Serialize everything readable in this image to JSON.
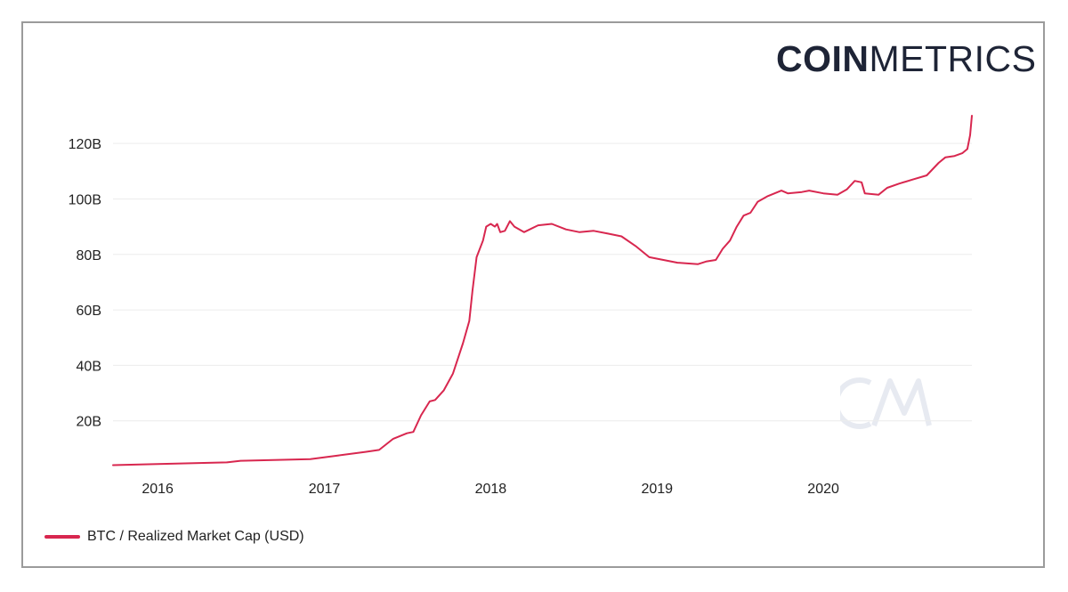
{
  "logo": {
    "bold": "COIN",
    "light": "METRICS"
  },
  "watermark_text": "CM",
  "colors": {
    "series": "#d8274f",
    "grid": "#ececec",
    "frame": "#9b9b9b",
    "logo": "#1e2436",
    "watermark": "#e7eaf1"
  },
  "chart_data": {
    "type": "line",
    "title": "",
    "xlabel": "",
    "ylabel": "",
    "x_ticks": [
      "2016",
      "2017",
      "2018",
      "2019",
      "2020"
    ],
    "y_ticks": [
      "20B",
      "40B",
      "60B",
      "80B",
      "100B",
      "120B"
    ],
    "y_tick_values": [
      20,
      40,
      60,
      80,
      100,
      120
    ],
    "xlim": [
      "2015-09-25",
      "2020-11-22"
    ],
    "ylim": [
      0,
      130
    ],
    "grid": true,
    "legend_position": "bottom-left",
    "series": [
      {
        "name": "BTC / Realized Market Cap (USD)",
        "unit": "B USD",
        "points": [
          [
            "2015-09-25",
            4.0
          ],
          [
            "2016-01-01",
            4.4
          ],
          [
            "2016-06-01",
            5.0
          ],
          [
            "2016-07-01",
            5.6
          ],
          [
            "2016-12-01",
            6.2
          ],
          [
            "2017-02-01",
            7.5
          ],
          [
            "2017-04-01",
            8.8
          ],
          [
            "2017-05-01",
            9.5
          ],
          [
            "2017-06-01",
            13.5
          ],
          [
            "2017-07-01",
            15.5
          ],
          [
            "2017-07-15",
            16.0
          ],
          [
            "2017-08-01",
            22.0
          ],
          [
            "2017-08-20",
            27.0
          ],
          [
            "2017-09-01",
            27.5
          ],
          [
            "2017-09-20",
            31.0
          ],
          [
            "2017-10-10",
            37.0
          ],
          [
            "2017-11-01",
            48.0
          ],
          [
            "2017-11-15",
            56.0
          ],
          [
            "2017-11-22",
            67.0
          ],
          [
            "2017-12-01",
            79.0
          ],
          [
            "2017-12-15",
            85.0
          ],
          [
            "2017-12-22",
            90.0
          ],
          [
            "2018-01-01",
            91.0
          ],
          [
            "2018-01-10",
            90.0
          ],
          [
            "2018-01-15",
            91.0
          ],
          [
            "2018-01-22",
            88.0
          ],
          [
            "2018-02-01",
            88.5
          ],
          [
            "2018-02-12",
            92.0
          ],
          [
            "2018-02-22",
            90.0
          ],
          [
            "2018-03-15",
            88.0
          ],
          [
            "2018-04-15",
            90.5
          ],
          [
            "2018-05-15",
            91.0
          ],
          [
            "2018-06-15",
            89.0
          ],
          [
            "2018-07-15",
            88.0
          ],
          [
            "2018-08-15",
            88.5
          ],
          [
            "2018-09-15",
            87.5
          ],
          [
            "2018-10-15",
            86.5
          ],
          [
            "2018-11-15",
            83.0
          ],
          [
            "2018-12-15",
            79.0
          ],
          [
            "2019-01-15",
            78.0
          ],
          [
            "2019-02-15",
            77.0
          ],
          [
            "2019-04-01",
            76.5
          ],
          [
            "2019-04-20",
            77.5
          ],
          [
            "2019-05-10",
            78.0
          ],
          [
            "2019-05-25",
            82.0
          ],
          [
            "2019-06-10",
            85.0
          ],
          [
            "2019-06-25",
            90.0
          ],
          [
            "2019-07-10",
            94.0
          ],
          [
            "2019-07-25",
            95.0
          ],
          [
            "2019-08-10",
            99.0
          ],
          [
            "2019-09-01",
            101.0
          ],
          [
            "2019-10-01",
            103.0
          ],
          [
            "2019-10-15",
            102.0
          ],
          [
            "2019-11-15",
            102.5
          ],
          [
            "2019-12-01",
            103.0
          ],
          [
            "2020-01-01",
            102.0
          ],
          [
            "2020-02-01",
            101.5
          ],
          [
            "2020-02-22",
            103.5
          ],
          [
            "2020-03-10",
            106.5
          ],
          [
            "2020-03-25",
            106.0
          ],
          [
            "2020-04-01",
            102.0
          ],
          [
            "2020-05-01",
            101.5
          ],
          [
            "2020-05-20",
            104.0
          ],
          [
            "2020-06-15",
            105.5
          ],
          [
            "2020-07-15",
            107.0
          ],
          [
            "2020-08-15",
            108.5
          ],
          [
            "2020-09-10",
            113.0
          ],
          [
            "2020-09-25",
            115.0
          ],
          [
            "2020-10-15",
            115.5
          ],
          [
            "2020-11-01",
            116.5
          ],
          [
            "2020-11-12",
            118.0
          ],
          [
            "2020-11-18",
            123.0
          ],
          [
            "2020-11-22",
            130.0
          ]
        ]
      }
    ]
  }
}
